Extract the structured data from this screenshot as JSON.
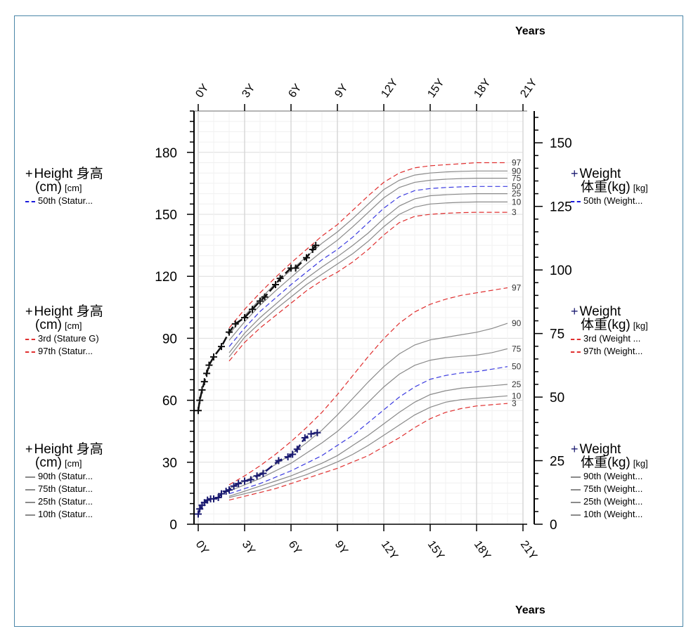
{
  "axis_title_top": "Years",
  "axis_title_bottom": "Years",
  "legend_groups": [
    {
      "side": "left",
      "title_line1": "Height 身高",
      "title_line2": "(cm)",
      "unit": "[cm]",
      "entries": [
        {
          "label": "50th (Statur...",
          "style": "blue-dashed"
        }
      ]
    },
    {
      "side": "left",
      "title_line1": "Height 身高",
      "title_line2": "(cm)",
      "unit": "[cm]",
      "entries": [
        {
          "label": "3rd (Stature G)",
          "style": "red-dashed"
        },
        {
          "label": "97th (Statur...",
          "style": "red-dashed"
        }
      ]
    },
    {
      "side": "left",
      "title_line1": "Height 身高",
      "title_line2": "(cm)",
      "unit": "[cm]",
      "entries": [
        {
          "label": "90th (Statur...",
          "style": "grey"
        },
        {
          "label": "75th (Statur...",
          "style": "grey"
        },
        {
          "label": "25th (Statur...",
          "style": "grey"
        },
        {
          "label": "10th (Statur...",
          "style": "grey"
        }
      ]
    },
    {
      "side": "right",
      "title_line1": "Weight",
      "title_line2": "体重(kg)",
      "unit": "[kg]",
      "entries": [
        {
          "label": "50th (Weight...",
          "style": "blue-dashed"
        }
      ]
    },
    {
      "side": "right",
      "title_line1": "Weight",
      "title_line2": "体重(kg)",
      "unit": "[kg]",
      "entries": [
        {
          "label": "3rd (Weight ...",
          "style": "red-dashed"
        },
        {
          "label": "97th (Weight...",
          "style": "red-dashed"
        }
      ]
    },
    {
      "side": "right",
      "title_line1": "Weight",
      "title_line2": "体重(kg)",
      "unit": "[kg]",
      "entries": [
        {
          "label": "90th (Weight...",
          "style": "grey"
        },
        {
          "label": "75th (Weight...",
          "style": "grey"
        },
        {
          "label": "25th (Weight...",
          "style": "grey"
        },
        {
          "label": "10th (Weight...",
          "style": "grey"
        }
      ]
    }
  ],
  "chart_data": {
    "type": "line",
    "x_ticks": [
      "0Y",
      "3Y",
      "6Y",
      "9Y",
      "12Y",
      "15Y",
      "18Y",
      "21Y"
    ],
    "xlim": [
      0,
      21
    ],
    "left_axis": {
      "ticks": [
        0,
        30,
        60,
        90,
        120,
        150,
        180
      ],
      "ylim": [
        0,
        200
      ]
    },
    "right_axis": {
      "ticks": [
        0,
        25,
        50,
        75,
        100,
        125,
        150
      ],
      "ylim": [
        0,
        162.5
      ]
    },
    "height_percentiles": {
      "x": [
        2,
        3,
        4,
        5,
        6,
        7,
        8,
        9,
        10,
        11,
        12,
        13,
        14,
        15,
        16,
        17,
        18,
        19,
        20
      ],
      "series": [
        {
          "label": "3",
          "color": "#e03030",
          "dash": true,
          "values": [
            79,
            88,
            95,
            101,
            107,
            113,
            118,
            122,
            127,
            133,
            140,
            146,
            149,
            150,
            150.5,
            150.8,
            151,
            151,
            151
          ]
        },
        {
          "label": "10",
          "color": "#8a8a8a",
          "dash": false,
          "values": [
            81,
            90.5,
            97.5,
            104,
            110,
            116,
            121,
            126,
            131,
            137,
            144,
            150,
            153.5,
            155,
            155.5,
            155.8,
            156,
            156,
            156
          ]
        },
        {
          "label": "25",
          "color": "#8a8a8a",
          "dash": false,
          "values": [
            83,
            92.5,
            100,
            106.5,
            113,
            119,
            124.5,
            129.5,
            135,
            141,
            148,
            154,
            157.5,
            159,
            159.5,
            159.8,
            160,
            160,
            160
          ]
        },
        {
          "label": "50",
          "color": "#3a3ae0",
          "dash": true,
          "values": [
            86,
            95,
            103,
            109.5,
            116,
            122,
            128,
            133,
            139,
            146,
            153,
            158.5,
            161.5,
            162.5,
            163,
            163.3,
            163.5,
            163.5,
            163.5
          ]
        },
        {
          "label": "75",
          "color": "#8a8a8a",
          "dash": false,
          "values": [
            89,
            98,
            106,
            113,
            119.5,
            126,
            132,
            137.5,
            144,
            151,
            158,
            163,
            165.5,
            166.5,
            167,
            167.3,
            167.5,
            167.5,
            167.5
          ]
        },
        {
          "label": "90",
          "color": "#8a8a8a",
          "dash": false,
          "values": [
            92,
            101,
            109,
            116.5,
            123,
            129.5,
            136,
            141.5,
            148,
            155,
            162,
            166.5,
            169,
            170,
            170.5,
            170.8,
            171,
            171,
            171
          ]
        },
        {
          "label": "97",
          "color": "#e03030",
          "dash": true,
          "values": [
            95,
            104,
            112,
            119.5,
            126.5,
            133,
            139.5,
            145,
            152,
            159,
            165.5,
            170,
            172.5,
            173.5,
            174,
            174.5,
            175,
            175,
            175
          ]
        }
      ]
    },
    "weight_percentiles": {
      "x": [
        2,
        3,
        4,
        5,
        6,
        7,
        8,
        9,
        10,
        11,
        12,
        13,
        14,
        15,
        16,
        17,
        18,
        19,
        20
      ],
      "series": [
        {
          "label": "3",
          "color": "#e03030",
          "dash": true,
          "values": [
            9.5,
            11,
            12.5,
            14,
            16,
            18,
            20,
            22,
            24.5,
            27,
            30.5,
            34,
            38,
            41.5,
            44,
            45.5,
            46.5,
            47,
            47.5
          ]
        },
        {
          "label": "10",
          "color": "#8a8a8a",
          "dash": false,
          "values": [
            10.5,
            12,
            13.5,
            15.5,
            17.5,
            19.5,
            22,
            24.5,
            27.5,
            31,
            35,
            39,
            43,
            46,
            48,
            49,
            49.5,
            50,
            50.5
          ]
        },
        {
          "label": "25",
          "color": "#8a8a8a",
          "dash": false,
          "values": [
            11,
            13,
            15,
            17,
            19,
            21.5,
            24,
            27,
            31,
            35,
            39.5,
            44,
            48,
            51,
            52.5,
            53.5,
            54,
            54.5,
            55
          ]
        },
        {
          "label": "50",
          "color": "#3a3ae0",
          "dash": true,
          "values": [
            12,
            14,
            16,
            18.5,
            21,
            24,
            27,
            31,
            35,
            40,
            45,
            50,
            54,
            57,
            58.5,
            59.5,
            60,
            61,
            62
          ]
        },
        {
          "label": "75",
          "color": "#8a8a8a",
          "dash": false,
          "values": [
            13,
            15.5,
            18,
            21,
            24,
            28,
            32,
            36.5,
            42,
            48,
            54,
            59,
            62.5,
            64.5,
            65.5,
            66,
            66.5,
            67.5,
            69
          ]
        },
        {
          "label": "90",
          "color": "#8a8a8a",
          "dash": false,
          "values": [
            14,
            17,
            20,
            23.5,
            27.5,
            32,
            37,
            43,
            49.5,
            56,
            62,
            67,
            70.5,
            72.5,
            73.5,
            74.5,
            75.5,
            77,
            79
          ]
        },
        {
          "label": "97",
          "color": "#e03030",
          "dash": true,
          "values": [
            15.5,
            19,
            23,
            27.5,
            32.5,
            38,
            44,
            51,
            58.5,
            66,
            73,
            79,
            83.5,
            86.5,
            88.5,
            90,
            91,
            92,
            93
          ]
        }
      ]
    },
    "height_measurements": {
      "color": "#111111",
      "x": [
        0,
        0.1,
        0.25,
        0.4,
        0.55,
        0.7,
        1.0,
        1.5,
        2.0,
        2.4,
        3.0,
        3.5,
        4.0,
        4.3,
        5.0,
        5.3,
        6.0,
        6.3,
        7.0,
        7.4,
        7.6
      ],
      "y": [
        55,
        60,
        65,
        69,
        73,
        77,
        81,
        86,
        93,
        97,
        100,
        104,
        108,
        110,
        116,
        119,
        124,
        124,
        129,
        133,
        135
      ]
    },
    "weight_measurements": {
      "color": "#1a1a70",
      "x": [
        0,
        0.1,
        0.25,
        0.4,
        0.6,
        0.8,
        1.0,
        1.3,
        1.5,
        1.8,
        2.0,
        2.3,
        2.6,
        3.0,
        3.4,
        3.8,
        4.2,
        5.2,
        5.8,
        6.1,
        6.4,
        6.9,
        7.3,
        7.7
      ],
      "y": [
        4,
        6,
        7.5,
        8.5,
        9.5,
        10,
        10,
        10.5,
        12,
        13,
        13.5,
        15,
        16,
        17,
        17.5,
        19,
        20,
        25,
        26.5,
        27.5,
        29.5,
        34,
        35.5,
        36
      ]
    }
  }
}
